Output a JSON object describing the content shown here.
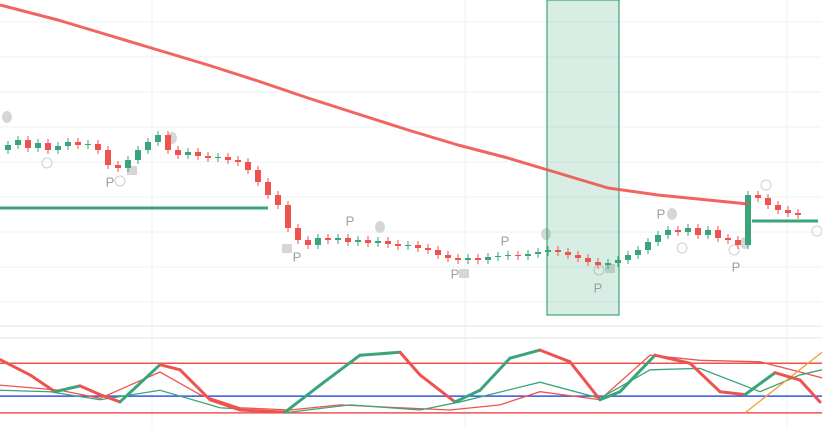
{
  "chart_data": [
    {
      "type": "candlestick",
      "xlim": [
        -0.8,
        81.4
      ],
      "ylim": [
        0,
        325
      ],
      "up_color": "#3aa57a",
      "down_color": "#ef5350",
      "candles": [
        [
          175,
          184,
          171,
          180
        ],
        [
          180,
          189,
          176,
          185
        ],
        [
          185,
          189,
          173,
          177
        ],
        [
          177,
          186,
          173,
          182
        ],
        [
          182,
          186,
          171,
          175
        ],
        [
          175,
          183,
          171,
          179
        ],
        [
          179,
          187,
          175,
          183
        ],
        [
          183,
          187,
          176,
          180
        ],
        [
          180,
          185,
          176,
          181
        ],
        [
          181,
          185,
          171,
          175
        ],
        [
          175,
          179,
          156,
          160
        ],
        [
          160,
          164,
          153,
          157
        ],
        [
          157,
          169,
          153,
          165
        ],
        [
          165,
          179,
          161,
          175
        ],
        [
          175,
          187,
          171,
          183
        ],
        [
          183,
          194,
          179,
          190
        ],
        [
          190,
          194,
          171,
          175
        ],
        [
          175,
          179,
          166,
          170
        ],
        [
          170,
          177,
          166,
          173
        ],
        [
          173,
          177,
          165,
          169
        ],
        [
          169,
          173,
          163,
          167
        ],
        [
          167,
          172,
          163,
          168
        ],
        [
          168,
          172,
          161,
          165
        ],
        [
          165,
          169,
          159,
          163
        ],
        [
          163,
          167,
          151,
          155
        ],
        [
          155,
          159,
          139,
          143
        ],
        [
          143,
          147,
          126,
          130
        ],
        [
          130,
          134,
          116,
          120
        ],
        [
          120,
          124,
          93,
          97
        ],
        [
          97,
          101,
          81,
          85
        ],
        [
          85,
          89,
          76,
          80
        ],
        [
          80,
          91,
          76,
          87
        ],
        [
          87,
          91,
          81,
          85
        ],
        [
          85,
          91,
          81,
          87
        ],
        [
          87,
          91,
          79,
          83
        ],
        [
          83,
          89,
          79,
          85
        ],
        [
          85,
          89,
          78,
          82
        ],
        [
          82,
          88,
          78,
          84
        ],
        [
          84,
          88,
          77,
          81
        ],
        [
          81,
          85,
          75,
          79
        ],
        [
          79,
          84,
          75,
          80
        ],
        [
          80,
          84,
          73,
          77
        ],
        [
          77,
          81,
          71,
          75
        ],
        [
          75,
          79,
          66,
          70
        ],
        [
          70,
          74,
          63,
          67
        ],
        [
          67,
          71,
          61,
          65
        ],
        [
          65,
          71,
          61,
          67
        ],
        [
          67,
          71,
          61,
          65
        ],
        [
          65,
          72,
          61,
          68
        ],
        [
          68,
          73,
          64,
          69
        ],
        [
          69,
          74,
          65,
          70
        ],
        [
          70,
          74,
          65,
          69
        ],
        [
          69,
          75,
          65,
          71
        ],
        [
          71,
          77,
          67,
          73
        ],
        [
          73,
          79,
          69,
          75
        ],
        [
          75,
          79,
          69,
          73
        ],
        [
          73,
          77,
          66,
          70
        ],
        [
          70,
          74,
          63,
          67
        ],
        [
          67,
          71,
          59,
          63
        ],
        [
          63,
          67,
          56,
          60
        ],
        [
          60,
          66,
          56,
          62
        ],
        [
          62,
          69,
          58,
          65
        ],
        [
          65,
          74,
          61,
          70
        ],
        [
          70,
          79,
          66,
          75
        ],
        [
          75,
          87,
          71,
          83
        ],
        [
          83,
          94,
          79,
          90
        ],
        [
          90,
          99,
          86,
          95
        ],
        [
          95,
          99,
          89,
          93
        ],
        [
          93,
          101,
          89,
          97
        ],
        [
          97,
          101,
          86,
          90
        ],
        [
          90,
          99,
          86,
          95
        ],
        [
          95,
          99,
          83,
          87
        ],
        [
          87,
          91,
          81,
          85
        ],
        [
          85,
          89,
          76,
          80
        ],
        [
          80,
          134,
          76,
          130
        ],
        [
          130,
          134,
          123,
          127
        ],
        [
          127,
          131,
          116,
          120
        ],
        [
          120,
          124,
          111,
          115
        ],
        [
          115,
          119,
          108,
          112
        ],
        [
          112,
          116,
          106,
          110
        ]
      ],
      "ma": {
        "color": "#ef5350",
        "x": [
          -0.8,
          5,
          10,
          15,
          20,
          25,
          30,
          35,
          40,
          45,
          50,
          55,
          60,
          65,
          70,
          74
        ],
        "values": [
          320,
          305,
          290,
          275,
          260,
          244,
          227,
          211,
          195,
          180,
          167,
          152,
          137,
          130,
          125,
          121
        ]
      },
      "levels": [
        {
          "color": "#3aa57a",
          "x": [
            -0.8,
            26
          ],
          "value": 117
        },
        {
          "color": "#3aa57a",
          "x": [
            74.4,
            81
          ],
          "value": 104
        }
      ],
      "highlight": {
        "color": "#3aa57a",
        "x": [
          53.9,
          61.1
        ],
        "y": [
          10,
          325
        ]
      },
      "annotations": [
        {
          "text": "P",
          "x": 10.2,
          "y": 142
        },
        {
          "text": "P",
          "x": 28.9,
          "y": 67
        },
        {
          "text": "P",
          "x": 34.2,
          "y": 103
        },
        {
          "text": "P",
          "x": 44.7,
          "y": 50
        },
        {
          "text": "P",
          "x": 49.7,
          "y": 83
        },
        {
          "text": "P",
          "x": 59,
          "y": 36
        },
        {
          "text": "P",
          "x": 65.3,
          "y": 110
        },
        {
          "text": "P",
          "x": 72.8,
          "y": 57
        }
      ]
    },
    {
      "type": "oscillator",
      "xlim": [
        -0.8,
        81.4
      ],
      "ylim": [
        0,
        100
      ],
      "main": {
        "color": "#ef5350",
        "up_color": "#3aa57a",
        "x": [
          -0.8,
          2.2,
          4.7,
          7.2,
          9.2,
          11.2,
          15.2,
          17.2,
          20.2,
          23.2,
          27.7,
          31.2,
          35.2,
          39.2,
          41.2,
          44.7,
          47.2,
          50.2,
          53.2,
          56.2,
          59.2,
          61.2,
          64.7,
          68.2,
          71.2,
          73.7,
          76.7,
          79.2,
          81.2
        ],
        "values": [
          80,
          59,
          36,
          44,
          32,
          22,
          73,
          66,
          25,
          11,
          8,
          45,
          86,
          90,
          59,
          22,
          38,
          82,
          93,
          77,
          25,
          36,
          86,
          75,
          36,
          32,
          62,
          52,
          22
        ]
      },
      "series": [
        {
          "color": "#ef5350",
          "x": [
            -0.8,
            5.2,
            9.2,
            15.2,
            19.2,
            23.2,
            28.2,
            33.2,
            39.2,
            44.2,
            49.2,
            53.2,
            59.2,
            64.2,
            69.2,
            75.2,
            79.2,
            81.4
          ],
          "values": [
            45,
            38,
            27,
            63,
            32,
            14,
            11,
            18,
            14,
            11,
            18,
            36,
            25,
            86,
            79,
            77,
            63,
            55
          ]
        },
        {
          "color": "#3aa57a",
          "x": [
            -0.8,
            4.2,
            9.2,
            15.2,
            21.2,
            28.2,
            34.2,
            41.2,
            45.2,
            53.2,
            59.2,
            64.2,
            69.2,
            75.2,
            79.2,
            81.4
          ],
          "values": [
            38,
            36,
            25,
            38,
            14,
            8,
            18,
            11,
            22,
            49,
            27,
            66,
            68,
            36,
            59,
            66
          ]
        },
        {
          "color": "#f0a030",
          "x": [
            73.7,
            81.4
          ],
          "values": [
            7,
            90
          ]
        }
      ],
      "levels": [
        {
          "value": 75,
          "color": "#ef5350"
        },
        {
          "value": 30,
          "color": "#3355dd"
        },
        {
          "value": 7,
          "color": "#ef5350"
        }
      ]
    }
  ]
}
